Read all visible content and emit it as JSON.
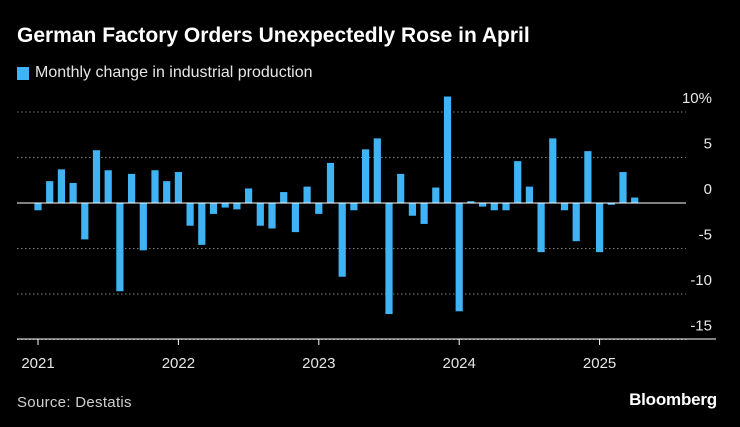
{
  "title": "German Factory Orders Unexpectedly Rose in April",
  "legend_label": "Monthly change in industrial production",
  "source": "Source: Destatis",
  "brand": "Bloomberg",
  "colors": {
    "bar": "#40b3f5",
    "grid": "#7a7a7a",
    "axis": "#ffffff",
    "text": "#e6e6e6"
  },
  "chart_data": {
    "type": "bar",
    "title": "German Factory Orders Unexpectedly Rose in April",
    "series": [
      {
        "name": "Monthly change in industrial production",
        "values": [
          -0.8,
          2.4,
          3.7,
          2.2,
          -4.0,
          5.8,
          3.6,
          -9.7,
          3.2,
          -5.2,
          3.6,
          2.4,
          3.4,
          -2.5,
          -4.6,
          -1.2,
          -0.5,
          -0.7,
          1.6,
          -2.5,
          -2.8,
          1.2,
          -3.2,
          1.8,
          -1.2,
          4.4,
          -8.1,
          -0.8,
          5.9,
          7.1,
          -12.2,
          3.2,
          -1.4,
          -2.3,
          1.7,
          11.7,
          -11.9,
          0.2,
          -0.4,
          -0.8,
          -0.8,
          4.6,
          1.8,
          -5.4,
          7.1,
          -0.8,
          -4.2,
          5.7,
          -5.4,
          -0.2,
          3.4,
          0.6
        ]
      }
    ],
    "x_start": "2021-01",
    "x_tick_labels": [
      "2021",
      "2022",
      "2023",
      "2024",
      "2025"
    ],
    "y_tick_values": [
      10,
      5,
      0,
      -5,
      -10,
      -15
    ],
    "y_tick_labels": [
      "10%",
      "5",
      "0",
      "-5",
      "-10",
      "-15"
    ],
    "ylim": [
      -15,
      12
    ],
    "grid": true,
    "xlabel": "",
    "ylabel": ""
  }
}
